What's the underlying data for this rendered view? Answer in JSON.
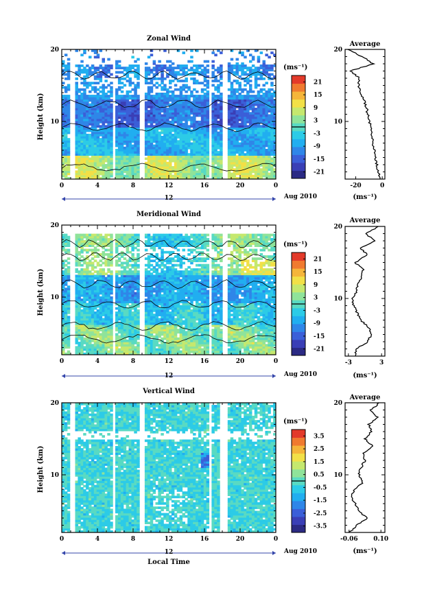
{
  "colors": {
    "colormap": [
      "#2b2a84",
      "#3a3fb6",
      "#3b5fd8",
      "#2f86e8",
      "#21aef0",
      "#2ccbe7",
      "#59dac3",
      "#8fe39a",
      "#c5e86e",
      "#f2e047",
      "#f5b53a",
      "#f07a2f",
      "#e33a2a"
    ],
    "contour": "#000000",
    "axis": "#000000",
    "arrow": "#3344aa"
  },
  "chart_data": [
    {
      "type": "heatmap",
      "title": "Zonal Wind",
      "ylabel": "Height (km)",
      "xlabel": "",
      "x_ticks": [
        "0",
        "4",
        "8",
        "12",
        "16",
        "20",
        "0"
      ],
      "x_tick_values": [
        0,
        4,
        8,
        12,
        16,
        20,
        24
      ],
      "y_ticks": [
        "20",
        "10"
      ],
      "y_tick_values": [
        20,
        10
      ],
      "xlim": [
        0,
        24
      ],
      "ylim": [
        2,
        20
      ],
      "date_marker": "12",
      "date_label": "Aug 2010",
      "colorbar": {
        "unit": "(ms⁻¹)",
        "ticks": [
          "21",
          "15",
          "9",
          "3",
          "-3",
          "-9",
          "-15",
          "-21"
        ],
        "range": [
          -24,
          24
        ]
      },
      "gaps": [
        [
          1.1,
          1.3
        ],
        [
          5.7,
          5.9
        ],
        [
          8.8,
          9.1
        ],
        [
          16.6,
          16.8
        ],
        [
          18.2,
          18.4
        ]
      ],
      "profile": {
        "title": "Average",
        "xlabel": "(ms⁻¹)",
        "x_ticks": [
          "-20",
          "0"
        ],
        "x_tick_values": [
          -20,
          0
        ],
        "xlim": [
          -28,
          2
        ],
        "y_ticks": [
          "20",
          "10"
        ],
        "heights": [
          2,
          3,
          4,
          5,
          6,
          7,
          8,
          9,
          10,
          11,
          12,
          13,
          14,
          15,
          16,
          17,
          18,
          19,
          20
        ],
        "values": [
          -1,
          -3,
          -4,
          -5,
          -6,
          -7,
          -8,
          -8,
          -10,
          -11,
          -12,
          -14,
          -16,
          -18,
          -17,
          -24,
          -7,
          -15,
          -26
        ]
      }
    },
    {
      "type": "heatmap",
      "title": "Meridional Wind",
      "ylabel": "Height (km)",
      "xlabel": "",
      "x_ticks": [
        "0",
        "4",
        "8",
        "12",
        "16",
        "20",
        "0"
      ],
      "x_tick_values": [
        0,
        4,
        8,
        12,
        16,
        20,
        24
      ],
      "y_ticks": [
        "20",
        "10"
      ],
      "y_tick_values": [
        20,
        10
      ],
      "xlim": [
        0,
        24
      ],
      "ylim": [
        2,
        20
      ],
      "date_marker": "12",
      "date_label": "Aug 2010",
      "colorbar": {
        "unit": "(ms⁻¹)",
        "ticks": [
          "21",
          "15",
          "9",
          "3",
          "-3",
          "-9",
          "-15",
          "-21"
        ],
        "range": [
          -24,
          24
        ]
      },
      "gaps": [
        [
          1.1,
          1.3
        ],
        [
          5.7,
          5.9
        ],
        [
          8.8,
          9.1
        ],
        [
          16.6,
          16.8
        ],
        [
          18.2,
          18.4
        ]
      ],
      "profile": {
        "title": "Average",
        "xlabel": "(ms⁻¹)",
        "x_ticks": [
          "-3",
          "3"
        ],
        "x_tick_values": [
          -3,
          3
        ],
        "xlim": [
          -3.6,
          3.6
        ],
        "y_ticks": [
          "20",
          "10"
        ],
        "heights": [
          2,
          3,
          4,
          5,
          6,
          7,
          8,
          9,
          10,
          11,
          12,
          13,
          14,
          15,
          16,
          17,
          18,
          19,
          20
        ],
        "values": [
          -1.8,
          -1.6,
          0.5,
          1.2,
          0.6,
          -0.8,
          -1.4,
          -2.0,
          -2.3,
          -1.5,
          -1.2,
          -0.6,
          -0.4,
          -1.8,
          0.4,
          -0.8,
          1.8,
          0.2,
          2.4
        ]
      }
    },
    {
      "type": "heatmap",
      "title": "Vertical Wind",
      "ylabel": "Height (km)",
      "xlabel": "Local Time",
      "x_ticks": [
        "0",
        "4",
        "8",
        "12",
        "16",
        "20",
        "0"
      ],
      "x_tick_values": [
        0,
        4,
        8,
        12,
        16,
        20,
        24
      ],
      "y_ticks": [
        "20",
        "10"
      ],
      "y_tick_values": [
        20,
        10
      ],
      "xlim": [
        0,
        24
      ],
      "ylim": [
        2,
        20
      ],
      "date_marker": "12",
      "date_label": "Aug 2010",
      "colorbar": {
        "unit": "(ms⁻¹)",
        "ticks": [
          "3.5",
          "2.5",
          "1.5",
          "0.5",
          "-0.5",
          "-1.5",
          "-2.5",
          "-3.5"
        ],
        "range": [
          -4,
          4
        ]
      },
      "gaps": [
        [
          1.1,
          1.3
        ],
        [
          5.7,
          5.9
        ],
        [
          8.8,
          9.1
        ],
        [
          16.6,
          16.8
        ],
        [
          17.9,
          18.5
        ]
      ],
      "profile": {
        "title": "Average",
        "xlabel": "(ms⁻¹)",
        "x_ticks": [
          "-0.06",
          "0.10"
        ],
        "x_tick_values": [
          -0.06,
          0.1
        ],
        "xlim": [
          -0.08,
          0.12
        ],
        "y_ticks": [
          "20",
          "10"
        ],
        "heights": [
          2,
          3,
          4,
          5,
          6,
          7,
          8,
          9,
          10,
          11,
          12,
          13,
          14,
          15,
          16,
          17,
          18,
          19,
          20
        ],
        "values": [
          -0.06,
          -0.02,
          0.03,
          -0.01,
          -0.03,
          -0.05,
          -0.03,
          0.01,
          -0.01,
          0.0,
          0.02,
          0.01,
          0.06,
          0.02,
          0.05,
          0.04,
          0.08,
          0.05,
          0.09
        ]
      }
    }
  ]
}
